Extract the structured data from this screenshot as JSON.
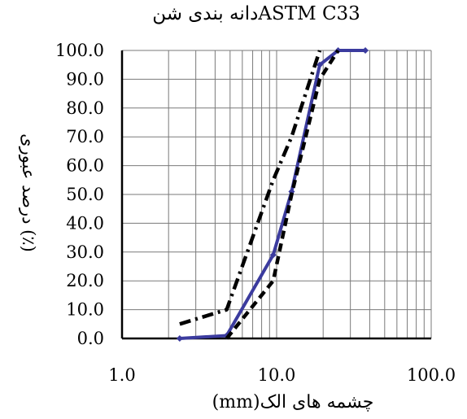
{
  "chart_data": {
    "type": "line",
    "title": "دانه بندی شنASTM C33",
    "xlabel": "(mm)چشمه های الک",
    "ylabel": "درصد عبوری (٪)",
    "xscale": "log",
    "xlim": [
      1,
      100
    ],
    "ylim": [
      0,
      100
    ],
    "grid": true,
    "x_ticks": [
      "1.0",
      "10.0",
      "100.0"
    ],
    "y_ticks": [
      "0.0",
      "10.0",
      "20.0",
      "30.0",
      "40.0",
      "50.0",
      "60.0",
      "70.0",
      "80.0",
      "90.0",
      "100.0"
    ],
    "series": [
      {
        "style": "solid",
        "color": "#3b3b9e",
        "marker": "diamond",
        "x": [
          2.36,
          4.75,
          9.5,
          12.5,
          19.0,
          25.0,
          37.5
        ],
        "y": [
          0,
          1,
          29,
          51,
          95,
          100,
          100
        ]
      },
      {
        "style": "dashed",
        "color": "#000000",
        "marker": "none",
        "x": [
          4.75,
          9.5,
          12.5,
          19.0,
          25.0
        ],
        "y": [
          0,
          20,
          50,
          90,
          100
        ]
      },
      {
        "style": "dashdot",
        "color": "#000000",
        "marker": "none",
        "x": [
          2.36,
          4.75,
          9.5,
          12.5,
          19.0
        ],
        "y": [
          5,
          10,
          55,
          70,
          100
        ]
      }
    ]
  }
}
